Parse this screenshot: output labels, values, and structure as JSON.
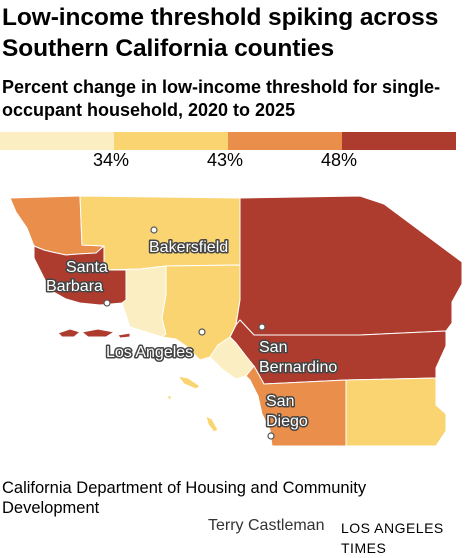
{
  "title": "Low-income threshold spiking across Southern California counties",
  "subtitle": "Percent change in low-income threshold for single-occupant household, 2020 to 2025",
  "legend": {
    "bins": [
      {
        "color": "#fbeec2"
      },
      {
        "color": "#f9d470"
      },
      {
        "color": "#e98e4b"
      },
      {
        "color": "#ad3c2e"
      }
    ],
    "thresholds": [
      "34%",
      "43%",
      "48%"
    ]
  },
  "map": {
    "counties": [
      {
        "name": "San Luis Obispo",
        "bin": 2
      },
      {
        "name": "Kern",
        "bin": 1
      },
      {
        "name": "Santa Barbara",
        "bin": 3
      },
      {
        "name": "Ventura",
        "bin": 0
      },
      {
        "name": "Los Angeles",
        "bin": 1
      },
      {
        "name": "Orange",
        "bin": 0
      },
      {
        "name": "San Bernardino",
        "bin": 3
      },
      {
        "name": "Riverside",
        "bin": 3
      },
      {
        "name": "San Diego",
        "bin": 2
      },
      {
        "name": "Imperial",
        "bin": 1
      }
    ],
    "labels": {
      "bakersfield": "Bakersfield",
      "santa_barbara_1": "Santa",
      "santa_barbara_2": "Barbara",
      "los_angeles": "Los Angeles",
      "san_bernardino_1": "San",
      "san_bernardino_2": "Bernardino",
      "san_diego_1": "San",
      "san_diego_2": "Diego"
    }
  },
  "source": "California Department of Housing and Community Development",
  "credit": {
    "name": "Terry Castleman",
    "org": "LOS ANGELES TIMES"
  }
}
